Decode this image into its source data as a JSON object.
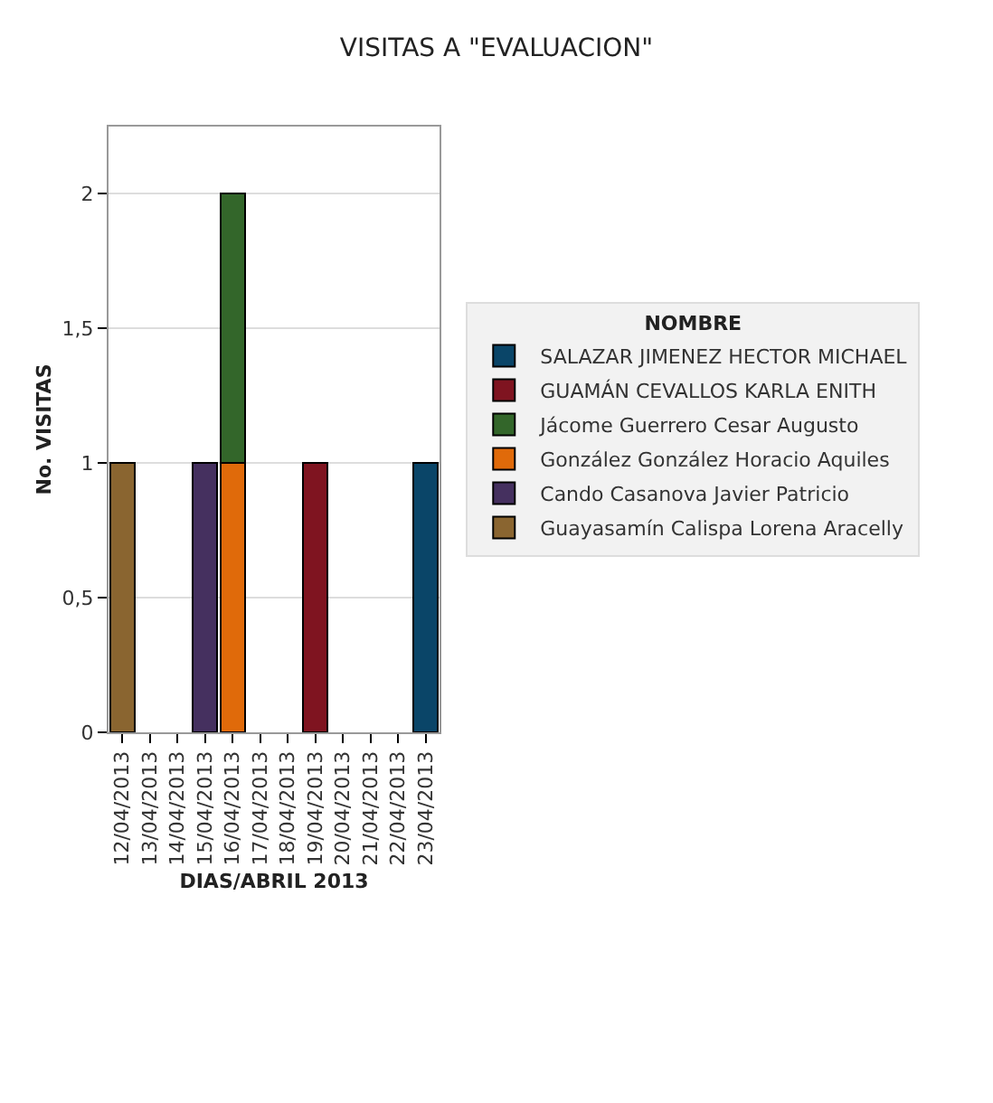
{
  "chart_data": {
    "type": "bar",
    "title": "VISITAS A \"EVALUACION\"",
    "xlabel": "DIAS/ABRIL 2013",
    "ylabel": "No. VISITAS",
    "legend_title": "NOMBRE",
    "categories": [
      "12/04/2013",
      "13/04/2013",
      "14/04/2013",
      "15/04/2013",
      "16/04/2013",
      "17/04/2013",
      "18/04/2013",
      "19/04/2013",
      "20/04/2013",
      "21/04/2013",
      "22/04/2013",
      "23/04/2013"
    ],
    "series": [
      {
        "name": "Guayasamín Calispa Lorena Aracelly",
        "color": "#8a6530",
        "values": [
          1,
          null,
          null,
          null,
          null,
          null,
          null,
          null,
          null,
          null,
          null,
          null
        ]
      },
      {
        "name": "Cando Casanova Javier Patricio",
        "color": "#45305f",
        "values": [
          null,
          null,
          null,
          1,
          null,
          null,
          null,
          null,
          null,
          null,
          null,
          null
        ]
      },
      {
        "name": "González González Horacio Aquiles",
        "color": "#e06a0a",
        "values": [
          null,
          null,
          null,
          null,
          1,
          null,
          null,
          null,
          null,
          null,
          null,
          null
        ]
      },
      {
        "name": "Jácome Guerrero Cesar Augusto",
        "color": "#33662a",
        "values": [
          null,
          null,
          null,
          null,
          1,
          null,
          null,
          null,
          null,
          null,
          null,
          null
        ]
      },
      {
        "name": "GUAMÁN CEVALLOS KARLA ENITH",
        "color": "#7f1420",
        "values": [
          null,
          null,
          null,
          null,
          null,
          null,
          null,
          1,
          null,
          null,
          null,
          null
        ]
      },
      {
        "name": "SALAZAR JIMENEZ HECTOR MICHAEL",
        "color": "#0a4568",
        "values": [
          null,
          null,
          null,
          null,
          null,
          null,
          null,
          null,
          null,
          null,
          null,
          1
        ]
      }
    ],
    "stacked": true,
    "ylim": [
      0,
      2.25
    ],
    "yticks": [
      0,
      {
        "value": 0.5,
        "label": "0,5"
      },
      1,
      {
        "value": 1.5,
        "label": "1,5"
      },
      2
    ],
    "grid": "y",
    "legend": "right"
  }
}
